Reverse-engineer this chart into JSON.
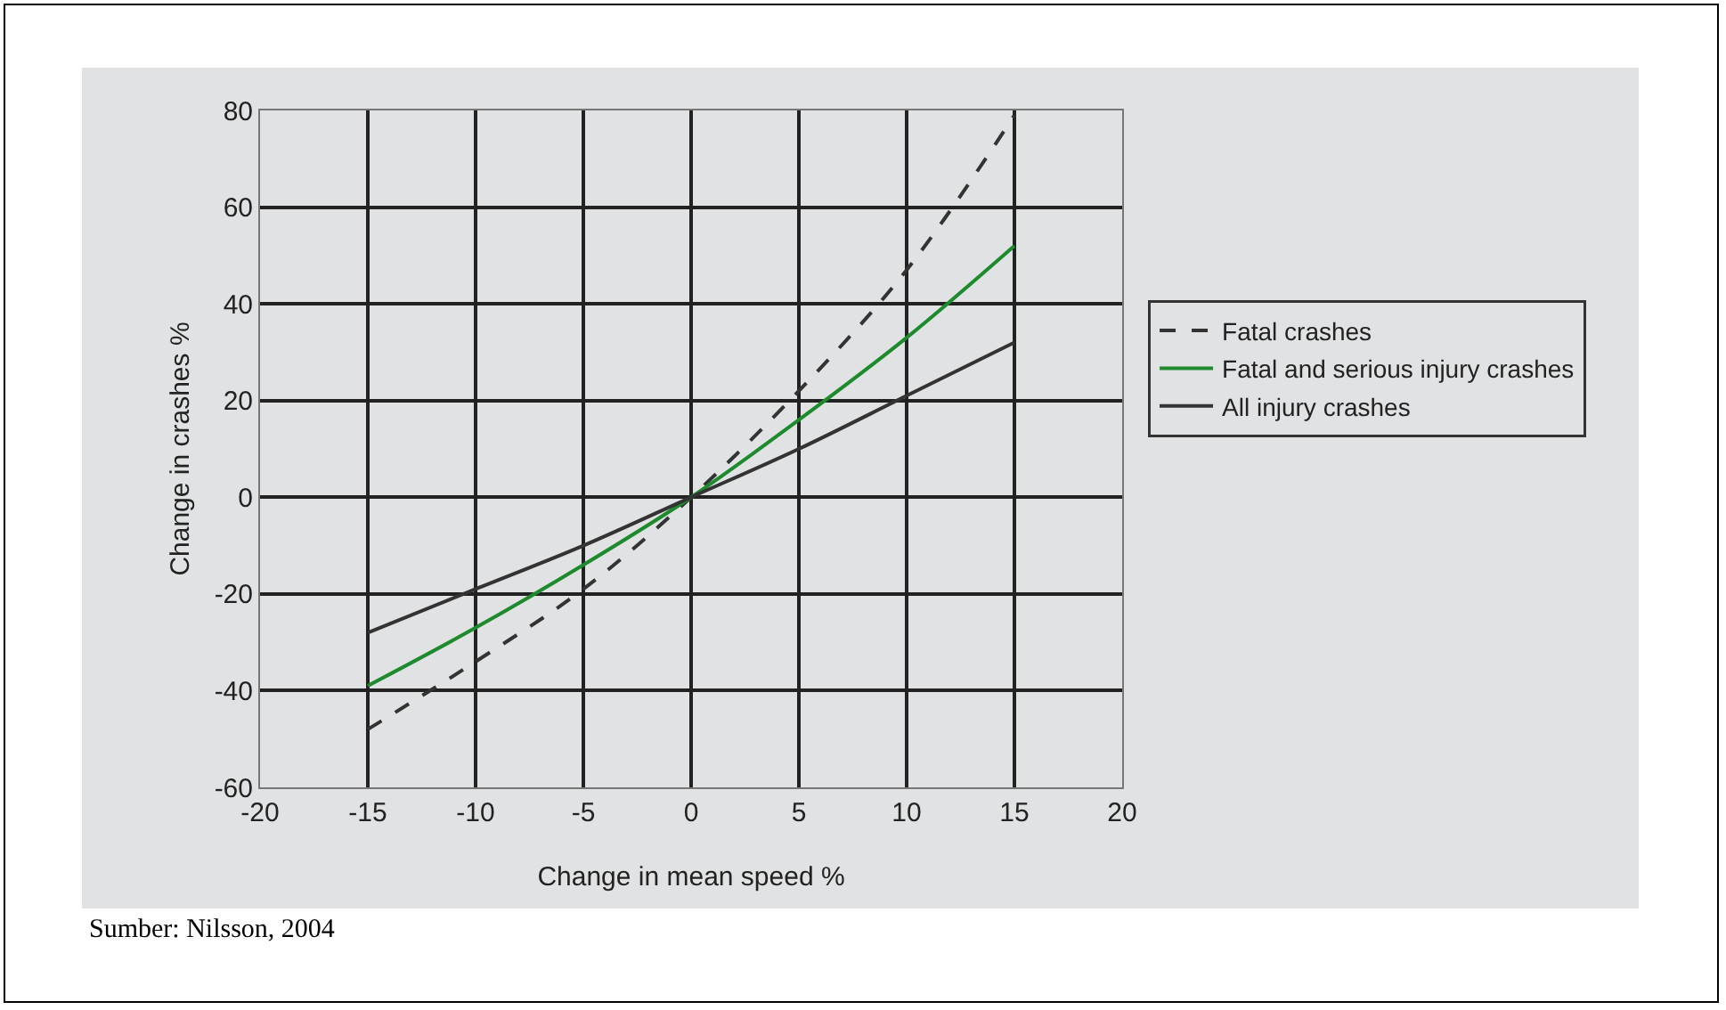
{
  "chart_data": {
    "type": "line",
    "xlabel": "Change in mean speed %",
    "ylabel": "Change in crashes %",
    "x": [
      -15,
      -10,
      -5,
      0,
      5,
      10,
      15
    ],
    "series": [
      {
        "name": "Fatal crashes",
        "color": "#333333",
        "line_style": "dashed",
        "values": [
          -48,
          -34,
          -19,
          0,
          22,
          47,
          79
        ]
      },
      {
        "name": "Fatal and serious injury crashes",
        "color": "#1e8a2e",
        "line_style": "solid",
        "values": [
          -39,
          -27,
          -14,
          0,
          16,
          33,
          52
        ]
      },
      {
        "name": "All injury crashes",
        "color": "#333333",
        "line_style": "solid",
        "values": [
          -28,
          -19,
          -10,
          0,
          10,
          21,
          32
        ]
      }
    ],
    "xlim": [
      -20,
      20
    ],
    "xticks": [
      -20,
      -15,
      -10,
      -5,
      0,
      5,
      10,
      15,
      20
    ],
    "ylim": [
      -60,
      80
    ],
    "yticks": [
      -60,
      -40,
      -20,
      0,
      20,
      40,
      60,
      80
    ],
    "grid": true,
    "legend": "right",
    "marker": "none",
    "annotations": [
      "Sumber: Nilsson, 2004"
    ]
  }
}
